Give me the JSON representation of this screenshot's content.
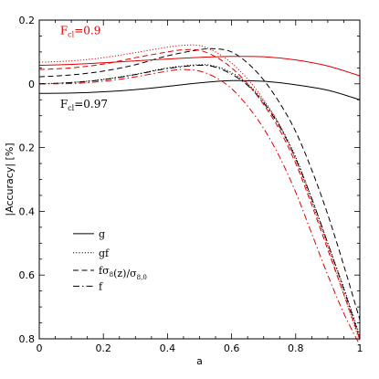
{
  "chart_data": {
    "type": "line",
    "xlabel": "a",
    "ylabel": "|Accuracy| [%]",
    "xlim": [
      0,
      1
    ],
    "ylim": [
      -0.8,
      0.2
    ],
    "x_ticks": [
      0,
      0.2,
      0.4,
      0.6,
      0.8,
      1
    ],
    "x_tick_labels": [
      "0",
      "0.2",
      "0.4",
      "0.6",
      "0.8",
      "1"
    ],
    "y_ticks": [
      0.2,
      0,
      -0.2,
      -0.4,
      -0.6,
      -0.8
    ],
    "y_tick_labels": [
      "0.2",
      "0",
      "0.2",
      "0.4",
      "0.6",
      "0.8"
    ],
    "grid": false,
    "legend_position": "bottom-left",
    "legend": [
      {
        "label": "g",
        "dash": "solid"
      },
      {
        "label": "gf",
        "dash": "dotted"
      },
      {
        "label": "fσ8(z)/σ8,0",
        "dash": "dashed"
      },
      {
        "label": "f",
        "dash": "dashdot"
      }
    ],
    "annotations": [
      {
        "text": "F_cl=0.9",
        "color": "#e00000",
        "anchor_x": 0.065,
        "anchor_y": 0.155
      },
      {
        "text": "F_cl=0.97",
        "color": "#000000",
        "anchor_x": 0.065,
        "anchor_y": -0.075
      }
    ],
    "colors": {
      "fcl_0_9": "#e00000",
      "fcl_0_97": "#000000"
    },
    "series": [
      {
        "group": "Fcl=0.97",
        "color": "#000000",
        "dash": "solid",
        "x": [
          0,
          0.1,
          0.2,
          0.3,
          0.4,
          0.5,
          0.6,
          0.7,
          0.8,
          0.9,
          1.0
        ],
        "y": [
          -0.03,
          -0.029,
          -0.025,
          -0.018,
          -0.008,
          0.003,
          0.01,
          0.008,
          -0.003,
          -0.02,
          -0.05
        ]
      },
      {
        "group": "Fcl=0.97",
        "color": "#000000",
        "dash": "dotted",
        "x": [
          0,
          0.1,
          0.2,
          0.3,
          0.4,
          0.5,
          0.55,
          0.6,
          0.65,
          0.7,
          0.75,
          0.8,
          0.85,
          0.9,
          0.95,
          1.0
        ],
        "y": [
          0.0,
          0.004,
          0.014,
          0.03,
          0.05,
          0.06,
          0.055,
          0.035,
          0.0,
          -0.055,
          -0.13,
          -0.23,
          -0.36,
          -0.5,
          -0.64,
          -0.79
        ]
      },
      {
        "group": "Fcl=0.97",
        "color": "#000000",
        "dash": "dashed",
        "x": [
          0,
          0.1,
          0.2,
          0.3,
          0.4,
          0.5,
          0.55,
          0.6,
          0.65,
          0.7,
          0.75,
          0.8,
          0.85,
          0.9,
          0.95,
          1.0
        ],
        "y": [
          0.022,
          0.028,
          0.04,
          0.06,
          0.088,
          0.107,
          0.11,
          0.1,
          0.065,
          0.012,
          -0.06,
          -0.15,
          -0.27,
          -0.41,
          -0.57,
          -0.74
        ]
      },
      {
        "group": "Fcl=0.97",
        "color": "#000000",
        "dash": "dashdot",
        "x": [
          0,
          0.1,
          0.2,
          0.3,
          0.4,
          0.5,
          0.55,
          0.6,
          0.65,
          0.7,
          0.75,
          0.8,
          0.85,
          0.9,
          0.95,
          1.0
        ],
        "y": [
          0.0,
          0.004,
          0.013,
          0.029,
          0.048,
          0.058,
          0.052,
          0.03,
          -0.005,
          -0.06,
          -0.135,
          -0.235,
          -0.36,
          -0.5,
          -0.645,
          -0.8
        ]
      },
      {
        "group": "Fcl=0.9",
        "color": "#e00000",
        "dash": "solid",
        "x": [
          0,
          0.1,
          0.2,
          0.3,
          0.4,
          0.5,
          0.6,
          0.7,
          0.8,
          0.9,
          1.0
        ],
        "y": [
          0.058,
          0.061,
          0.066,
          0.072,
          0.078,
          0.083,
          0.086,
          0.085,
          0.075,
          0.056,
          0.025
        ]
      },
      {
        "group": "Fcl=0.9",
        "color": "#e00000",
        "dash": "dotted",
        "x": [
          0,
          0.1,
          0.2,
          0.3,
          0.4,
          0.45,
          0.5,
          0.55,
          0.6,
          0.65,
          0.7,
          0.75,
          0.8,
          0.85,
          0.9,
          0.95,
          1.0
        ],
        "y": [
          0.068,
          0.072,
          0.082,
          0.098,
          0.115,
          0.121,
          0.12,
          0.1,
          0.065,
          0.015,
          -0.05,
          -0.13,
          -0.24,
          -0.37,
          -0.51,
          -0.66,
          -0.81
        ]
      },
      {
        "group": "Fcl=0.9",
        "color": "#e00000",
        "dash": "dashed",
        "x": [
          0,
          0.1,
          0.2,
          0.3,
          0.4,
          0.45,
          0.5,
          0.55,
          0.6,
          0.65,
          0.7,
          0.75,
          0.8,
          0.85,
          0.9,
          0.95,
          1.0
        ],
        "y": [
          0.045,
          0.05,
          0.062,
          0.082,
          0.1,
          0.107,
          0.105,
          0.085,
          0.05,
          0.0,
          -0.065,
          -0.145,
          -0.25,
          -0.38,
          -0.52,
          -0.66,
          -0.8
        ]
      },
      {
        "group": "Fcl=0.9",
        "color": "#e00000",
        "dash": "dashdot",
        "x": [
          0,
          0.1,
          0.2,
          0.3,
          0.4,
          0.45,
          0.5,
          0.55,
          0.6,
          0.65,
          0.7,
          0.75,
          0.8,
          0.85,
          0.9,
          0.95,
          1.0
        ],
        "y": [
          0.0,
          0.001,
          0.008,
          0.022,
          0.04,
          0.045,
          0.04,
          0.02,
          -0.015,
          -0.07,
          -0.14,
          -0.23,
          -0.34,
          -0.47,
          -0.6,
          -0.72,
          -0.82
        ]
      }
    ]
  }
}
